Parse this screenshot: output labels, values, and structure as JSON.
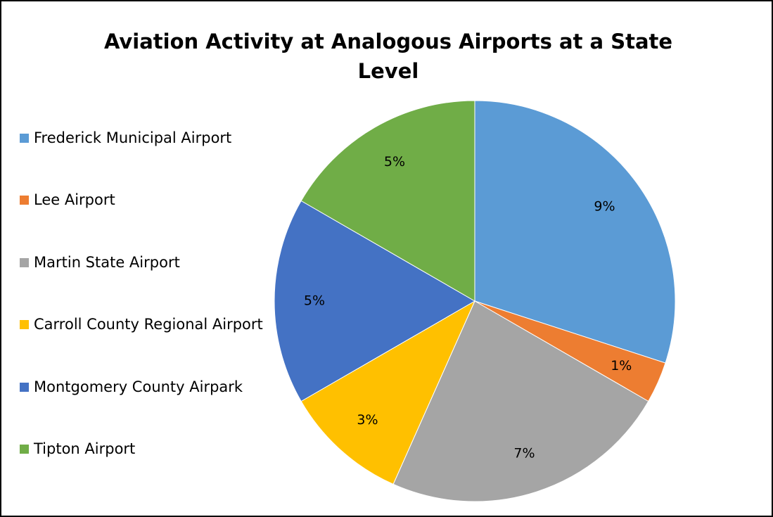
{
  "chart_data": {
    "type": "pie",
    "title": "Aviation Activity at Analogous Airports at a State Level",
    "categories": [
      "Frederick Municipal Airport",
      "Lee Airport",
      "Martin State Airport",
      "Carroll County Regional Airport",
      "Montgomery County Airpark",
      "Tipton Airport"
    ],
    "values": [
      9,
      1,
      7,
      3,
      5,
      5
    ],
    "value_labels": [
      "9%",
      "1%",
      "7%",
      "3%",
      "5%",
      "5%"
    ],
    "colors": [
      "#5b9bd5",
      "#ed7d31",
      "#a5a5a5",
      "#ffc000",
      "#4472c4",
      "#70ad47"
    ],
    "legend": "left"
  }
}
